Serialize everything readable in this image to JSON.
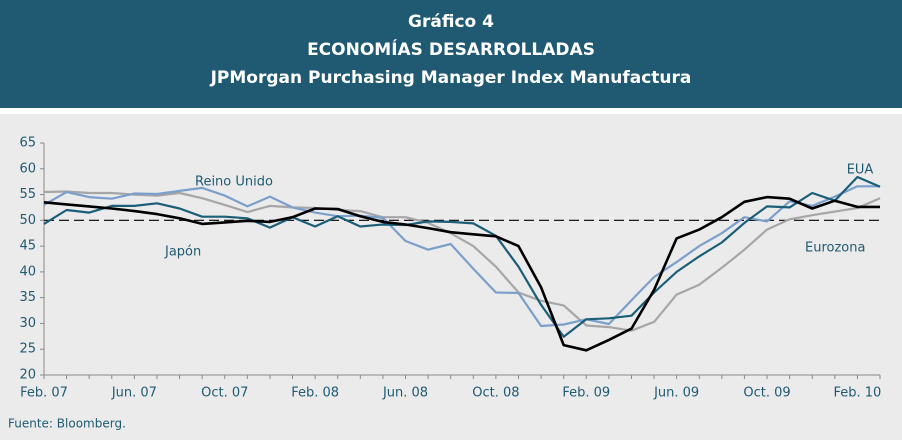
{
  "chart_data": {
    "type": "line",
    "title": [
      "Gráfico 4",
      "ECONOMÍAS DESARROLLADAS",
      "JPMorgan Purchasing Manager Index Manufactura"
    ],
    "source": "Fuente: Bloomberg.",
    "categories": [
      "Feb. 07",
      null,
      null,
      null,
      "Jun. 07",
      null,
      null,
      null,
      "Oct. 07",
      null,
      null,
      null,
      "Feb. 08",
      null,
      null,
      null,
      "Jun. 08",
      null,
      null,
      null,
      "Oct. 08",
      null,
      null,
      null,
      "Feb. 09",
      null,
      null,
      null,
      "Jun. 09",
      null,
      null,
      null,
      "Oct. 09",
      null,
      null,
      null,
      "Feb. 10",
      null
    ],
    "ylim": [
      20,
      65
    ],
    "yticks": [
      20,
      25,
      30,
      35,
      40,
      45,
      50,
      55,
      60,
      65
    ],
    "reference_line": 50,
    "series": [
      {
        "name": "Eurozona",
        "color": "#a6a6a6",
        "values": [
          55.5,
          55.6,
          55.3,
          55.3,
          55,
          54.8,
          55.3,
          54.3,
          53,
          51.6,
          52.8,
          52.5,
          52.4,
          52,
          51.8,
          50.6,
          50.6,
          49.5,
          47.5,
          45,
          41,
          36,
          34.4,
          33.5,
          29.6,
          29.3,
          28.6,
          30.3,
          35.6,
          37.5,
          40.8,
          44.3,
          48.2,
          50.2,
          51,
          51.7,
          52.4,
          54.3
        ]
      },
      {
        "name": "Reino Unido",
        "color": "#7b9fcb",
        "values": [
          53,
          55.5,
          54.5,
          54.2,
          55.2,
          55.1,
          55.7,
          56.3,
          54.8,
          52.7,
          54.6,
          52.5,
          51.5,
          50.8,
          50.9,
          50.5,
          46,
          44.3,
          45.4,
          40.6,
          36,
          35.9,
          29.5,
          29.8,
          30.8,
          29.9,
          34.5,
          39,
          41.9,
          45,
          47.5,
          50.6,
          49.8,
          53.7,
          52.8,
          54.6,
          56.6,
          56.6
        ]
      },
      {
        "name": "EUA",
        "color": "#1b5e78",
        "values": [
          49.3,
          52,
          51.5,
          52.8,
          52.8,
          53.3,
          52.3,
          50.7,
          50.7,
          50.4,
          48.6,
          50.6,
          48.8,
          50.8,
          48.8,
          49.2,
          49.1,
          49.8,
          49.7,
          49.4,
          47,
          41,
          33.6,
          27.4,
          30.8,
          31,
          31.5,
          36,
          40,
          43,
          45.7,
          49.5,
          52.7,
          52.5,
          55.3,
          53.8,
          58.4,
          56.5
        ]
      },
      {
        "name": "Japón",
        "color": "#000000",
        "values": [
          53.5,
          53.1,
          52.7,
          52.3,
          51.8,
          51.2,
          50.4,
          49.3,
          49.6,
          49.9,
          49.7,
          50.6,
          52.3,
          52.2,
          50.8,
          49.7,
          49.2,
          48.5,
          47.7,
          47.3,
          46.9,
          45,
          37,
          25.8,
          24.8,
          26.8,
          29,
          36.5,
          46.5,
          48.2,
          50.6,
          53.6,
          54.5,
          54.2,
          52.3,
          53.8,
          52.6,
          52.6
        ]
      }
    ]
  }
}
